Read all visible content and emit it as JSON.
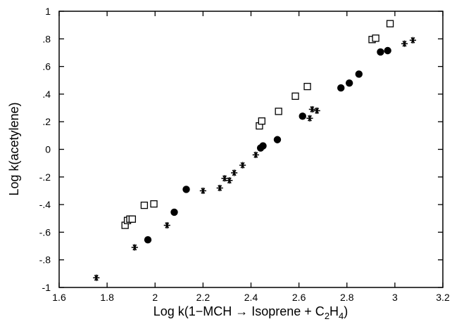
{
  "chart_data": {
    "type": "scatter",
    "title": "",
    "xlabel": {
      "pre": "Log k(1−MCH → Isoprene + C",
      "sub1": "2",
      "mid": "H",
      "sub2": "4",
      "post": ")"
    },
    "ylabel": "Log k(acetylene)",
    "xlim": [
      1.6,
      3.2
    ],
    "ylim": [
      -1,
      1
    ],
    "x_ticks": [
      1.6,
      1.8,
      2.0,
      2.2,
      2.4,
      2.6,
      2.8,
      3.0,
      3.2
    ],
    "x_tick_labels": [
      "1.6",
      "1.8",
      "2",
      "2.2",
      "2.4",
      "2.6",
      "2.8",
      "3",
      "3.2"
    ],
    "y_ticks": [
      -1,
      -0.8,
      -0.6,
      -0.4,
      -0.2,
      0,
      0.2,
      0.4,
      0.6,
      0.8,
      1
    ],
    "y_tick_labels": [
      "-1",
      "-.8",
      "-.6",
      "-.4",
      "-.2",
      "0",
      ".2",
      ".4",
      ".6",
      ".8",
      "1"
    ],
    "grid": false,
    "legend": "none",
    "series": [
      {
        "marker": "open-square",
        "points": [
          [
            1.875,
            -0.55
          ],
          [
            1.885,
            -0.515
          ],
          [
            1.895,
            -0.505
          ],
          [
            1.905,
            -0.505
          ],
          [
            1.955,
            -0.405
          ],
          [
            1.995,
            -0.395
          ],
          [
            2.435,
            0.17
          ],
          [
            2.445,
            0.205
          ],
          [
            2.515,
            0.275
          ],
          [
            2.585,
            0.385
          ],
          [
            2.635,
            0.455
          ],
          [
            2.905,
            0.795
          ],
          [
            2.92,
            0.805
          ],
          [
            2.98,
            0.91
          ]
        ]
      },
      {
        "marker": "filled-circle",
        "points": [
          [
            1.97,
            -0.655
          ],
          [
            2.08,
            -0.455
          ],
          [
            2.13,
            -0.29
          ],
          [
            2.44,
            0.01
          ],
          [
            2.45,
            0.025
          ],
          [
            2.51,
            0.07
          ],
          [
            2.615,
            0.24
          ],
          [
            2.775,
            0.445
          ],
          [
            2.81,
            0.48
          ],
          [
            2.85,
            0.545
          ],
          [
            2.94,
            0.705
          ],
          [
            2.97,
            0.715
          ]
        ]
      },
      {
        "marker": "asterisk",
        "points": [
          [
            1.755,
            -0.93
          ],
          [
            1.915,
            -0.71
          ],
          [
            2.05,
            -0.55
          ],
          [
            2.2,
            -0.3
          ],
          [
            2.27,
            -0.28
          ],
          [
            2.29,
            -0.21
          ],
          [
            2.31,
            -0.225
          ],
          [
            2.33,
            -0.17
          ],
          [
            2.365,
            -0.115
          ],
          [
            2.42,
            -0.04
          ],
          [
            2.645,
            0.225
          ],
          [
            2.655,
            0.29
          ],
          [
            2.675,
            0.28
          ],
          [
            3.04,
            0.765
          ],
          [
            3.075,
            0.79
          ]
        ]
      }
    ]
  }
}
